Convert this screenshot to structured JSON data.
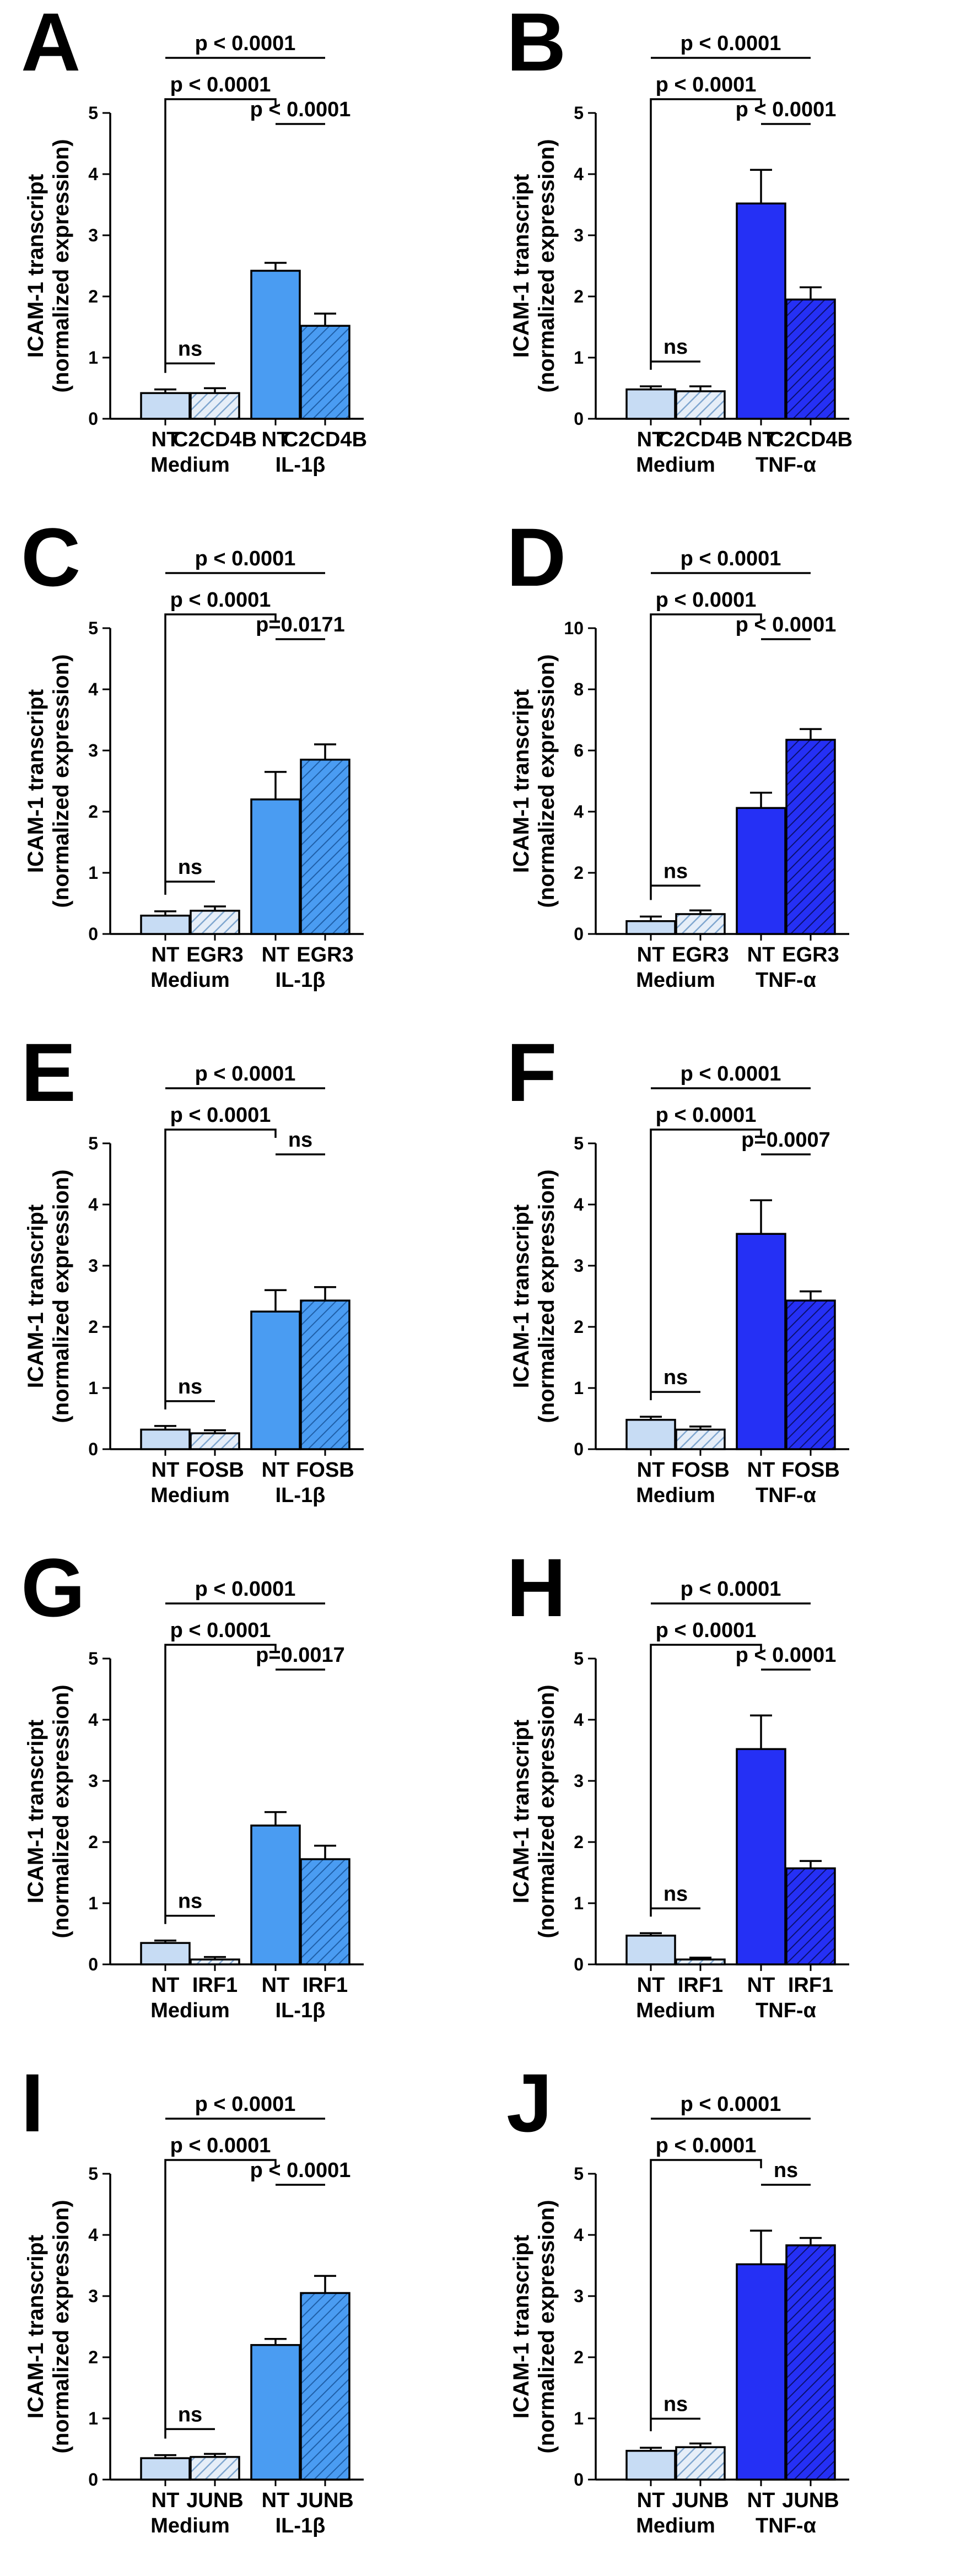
{
  "colors": {
    "medium_nt": "#c7dcf4",
    "medium_kd_hatch": "#7fa6cf",
    "il1b": "#4a9cf2",
    "tnfa": "#2530f5",
    "tnfa_hatch_bg": "#2530f5"
  },
  "chart_data": [
    {
      "panel": "A",
      "type": "bar",
      "ylabel": [
        "ICAM-1 transcript",
        "(normalized expression)"
      ],
      "ylim": [
        0,
        5
      ],
      "yticks": [
        0,
        1,
        2,
        3,
        4,
        5
      ],
      "categories": [
        "NT",
        "C2CD4B",
        "NT",
        "C2CD4B"
      ],
      "groups": [
        "Medium",
        "IL-1β"
      ],
      "values": [
        0.42,
        0.42,
        2.42,
        1.52
      ],
      "errors": [
        0.06,
        0.08,
        0.13,
        0.2
      ],
      "stimulus": "il1b",
      "annotations": [
        {
          "text": "ns",
          "from": 0,
          "to": 1,
          "kind": "line"
        },
        {
          "text": "p < 0.0001",
          "from": 2,
          "to": 3,
          "kind": "line"
        },
        {
          "text": "p < 0.0001",
          "from": 0,
          "to": 2,
          "kind": "bracket"
        },
        {
          "text": "p < 0.0001",
          "from": 0,
          "to": 3,
          "kind": "line"
        }
      ]
    },
    {
      "panel": "B",
      "type": "bar",
      "ylabel": [
        "ICAM-1 transcript",
        "(normalized expression)"
      ],
      "ylim": [
        0,
        5
      ],
      "yticks": [
        0,
        1,
        2,
        3,
        4,
        5
      ],
      "categories": [
        "NT",
        "C2CD4B",
        "NT",
        "C2CD4B"
      ],
      "groups": [
        "Medium",
        "TNF-α"
      ],
      "values": [
        0.48,
        0.45,
        3.52,
        1.95
      ],
      "errors": [
        0.05,
        0.08,
        0.55,
        0.2
      ],
      "stimulus": "tnfa",
      "annotations": [
        {
          "text": "ns",
          "from": 0,
          "to": 1,
          "kind": "line"
        },
        {
          "text": "p < 0.0001",
          "from": 2,
          "to": 3,
          "kind": "line"
        },
        {
          "text": "p < 0.0001",
          "from": 0,
          "to": 2,
          "kind": "bracket"
        },
        {
          "text": "p < 0.0001",
          "from": 0,
          "to": 3,
          "kind": "line"
        }
      ]
    },
    {
      "panel": "C",
      "type": "bar",
      "ylabel": [
        "ICAM-1 transcript",
        "(normalized expression)"
      ],
      "ylim": [
        0,
        5
      ],
      "yticks": [
        0,
        1,
        2,
        3,
        4,
        5
      ],
      "categories": [
        "NT",
        "EGR3",
        "NT",
        "EGR3"
      ],
      "groups": [
        "Medium",
        "IL-1β"
      ],
      "values": [
        0.3,
        0.38,
        2.2,
        2.85
      ],
      "errors": [
        0.07,
        0.07,
        0.45,
        0.25
      ],
      "stimulus": "il1b",
      "annotations": [
        {
          "text": "ns",
          "from": 0,
          "to": 1,
          "kind": "line"
        },
        {
          "text": "p=0.0171",
          "from": 2,
          "to": 3,
          "kind": "line"
        },
        {
          "text": "p < 0.0001",
          "from": 0,
          "to": 2,
          "kind": "bracket"
        },
        {
          "text": "p < 0.0001",
          "from": 0,
          "to": 3,
          "kind": "line"
        }
      ]
    },
    {
      "panel": "D",
      "type": "bar",
      "ylabel": [
        "ICAM-1 transcript",
        "(normalized expression)"
      ],
      "ylim": [
        0,
        10
      ],
      "yticks": [
        0,
        2,
        4,
        6,
        8,
        10
      ],
      "categories": [
        "NT",
        "EGR3",
        "NT",
        "EGR3"
      ],
      "groups": [
        "Medium",
        "TNF-α"
      ],
      "values": [
        0.42,
        0.65,
        4.12,
        6.35
      ],
      "errors": [
        0.15,
        0.12,
        0.5,
        0.35
      ],
      "stimulus": "tnfa",
      "annotations": [
        {
          "text": "ns",
          "from": 0,
          "to": 1,
          "kind": "line"
        },
        {
          "text": "p < 0.0001",
          "from": 2,
          "to": 3,
          "kind": "line"
        },
        {
          "text": "p < 0.0001",
          "from": 0,
          "to": 2,
          "kind": "bracket"
        },
        {
          "text": "p < 0.0001",
          "from": 0,
          "to": 3,
          "kind": "line"
        }
      ]
    },
    {
      "panel": "E",
      "type": "bar",
      "ylabel": [
        "ICAM-1 transcript",
        "(normalized expression)"
      ],
      "ylim": [
        0,
        5
      ],
      "yticks": [
        0,
        1,
        2,
        3,
        4,
        5
      ],
      "categories": [
        "NT",
        "FOSB",
        "NT",
        "FOSB"
      ],
      "groups": [
        "Medium",
        "IL-1β"
      ],
      "values": [
        0.32,
        0.26,
        2.25,
        2.43
      ],
      "errors": [
        0.06,
        0.05,
        0.35,
        0.22
      ],
      "stimulus": "il1b",
      "annotations": [
        {
          "text": "ns",
          "from": 0,
          "to": 1,
          "kind": "line"
        },
        {
          "text": "ns",
          "from": 2,
          "to": 3,
          "kind": "line"
        },
        {
          "text": "p < 0.0001",
          "from": 0,
          "to": 2,
          "kind": "bracket"
        },
        {
          "text": "p < 0.0001",
          "from": 0,
          "to": 3,
          "kind": "line"
        }
      ]
    },
    {
      "panel": "F",
      "type": "bar",
      "ylabel": [
        "ICAM-1 transcript",
        "(normalized expression)"
      ],
      "ylim": [
        0,
        5
      ],
      "yticks": [
        0,
        1,
        2,
        3,
        4,
        5
      ],
      "categories": [
        "NT",
        "FOSB",
        "NT",
        "FOSB"
      ],
      "groups": [
        "Medium",
        "TNF-α"
      ],
      "values": [
        0.48,
        0.32,
        3.52,
        2.43
      ],
      "errors": [
        0.05,
        0.05,
        0.55,
        0.15
      ],
      "stimulus": "tnfa",
      "annotations": [
        {
          "text": "ns",
          "from": 0,
          "to": 1,
          "kind": "line"
        },
        {
          "text": "p=0.0007",
          "from": 2,
          "to": 3,
          "kind": "line"
        },
        {
          "text": "p < 0.0001",
          "from": 0,
          "to": 2,
          "kind": "bracket"
        },
        {
          "text": "p < 0.0001",
          "from": 0,
          "to": 3,
          "kind": "line"
        }
      ]
    },
    {
      "panel": "G",
      "type": "bar",
      "ylabel": [
        "ICAM-1 transcript",
        "(normalized expression)"
      ],
      "ylim": [
        0,
        5
      ],
      "yticks": [
        0,
        1,
        2,
        3,
        4,
        5
      ],
      "categories": [
        "NT",
        "IRF1",
        "NT",
        "IRF1"
      ],
      "groups": [
        "Medium",
        "IL-1β"
      ],
      "values": [
        0.35,
        0.08,
        2.27,
        1.72
      ],
      "errors": [
        0.04,
        0.04,
        0.22,
        0.22
      ],
      "stimulus": "il1b",
      "annotations": [
        {
          "text": "ns",
          "from": 0,
          "to": 1,
          "kind": "line"
        },
        {
          "text": "p=0.0017",
          "from": 2,
          "to": 3,
          "kind": "line"
        },
        {
          "text": "p < 0.0001",
          "from": 0,
          "to": 2,
          "kind": "bracket"
        },
        {
          "text": "p < 0.0001",
          "from": 0,
          "to": 3,
          "kind": "line"
        }
      ]
    },
    {
      "panel": "H",
      "type": "bar",
      "ylabel": [
        "ICAM-1 transcript",
        "(normalized expression)"
      ],
      "ylim": [
        0,
        5
      ],
      "yticks": [
        0,
        1,
        2,
        3,
        4,
        5
      ],
      "categories": [
        "NT",
        "IRF1",
        "NT",
        "IRF1"
      ],
      "groups": [
        "Medium",
        "TNF-α"
      ],
      "values": [
        0.47,
        0.08,
        3.52,
        1.57
      ],
      "errors": [
        0.04,
        0.03,
        0.55,
        0.12
      ],
      "stimulus": "tnfa",
      "annotations": [
        {
          "text": "ns",
          "from": 0,
          "to": 1,
          "kind": "line"
        },
        {
          "text": "p < 0.0001",
          "from": 2,
          "to": 3,
          "kind": "line"
        },
        {
          "text": "p < 0.0001",
          "from": 0,
          "to": 2,
          "kind": "bracket"
        },
        {
          "text": "p < 0.0001",
          "from": 0,
          "to": 3,
          "kind": "line"
        }
      ]
    },
    {
      "panel": "I",
      "type": "bar",
      "ylabel": [
        "ICAM-1 transcript",
        "(normalized expression)"
      ],
      "ylim": [
        0,
        5
      ],
      "yticks": [
        0,
        1,
        2,
        3,
        4,
        5
      ],
      "categories": [
        "NT",
        "JUNB",
        "NT",
        "JUNB"
      ],
      "groups": [
        "Medium",
        "IL-1β"
      ],
      "values": [
        0.35,
        0.37,
        2.2,
        3.05
      ],
      "errors": [
        0.05,
        0.05,
        0.1,
        0.28
      ],
      "stimulus": "il1b",
      "annotations": [
        {
          "text": "ns",
          "from": 0,
          "to": 1,
          "kind": "line"
        },
        {
          "text": "p < 0.0001",
          "from": 2,
          "to": 3,
          "kind": "line"
        },
        {
          "text": "p < 0.0001",
          "from": 0,
          "to": 2,
          "kind": "bracket"
        },
        {
          "text": "p < 0.0001",
          "from": 0,
          "to": 3,
          "kind": "line"
        }
      ]
    },
    {
      "panel": "J",
      "type": "bar",
      "ylabel": [
        "ICAM-1 transcript",
        "(normalized expression)"
      ],
      "ylim": [
        0,
        5
      ],
      "yticks": [
        0,
        1,
        2,
        3,
        4,
        5
      ],
      "categories": [
        "NT",
        "JUNB",
        "NT",
        "JUNB"
      ],
      "groups": [
        "Medium",
        "TNF-α"
      ],
      "values": [
        0.47,
        0.53,
        3.52,
        3.83
      ],
      "errors": [
        0.05,
        0.06,
        0.55,
        0.12
      ],
      "stimulus": "tnfa",
      "annotations": [
        {
          "text": "ns",
          "from": 0,
          "to": 1,
          "kind": "line"
        },
        {
          "text": "ns",
          "from": 2,
          "to": 3,
          "kind": "line"
        },
        {
          "text": "p < 0.0001",
          "from": 0,
          "to": 2,
          "kind": "bracket"
        },
        {
          "text": "p < 0.0001",
          "from": 0,
          "to": 3,
          "kind": "line"
        }
      ]
    }
  ]
}
